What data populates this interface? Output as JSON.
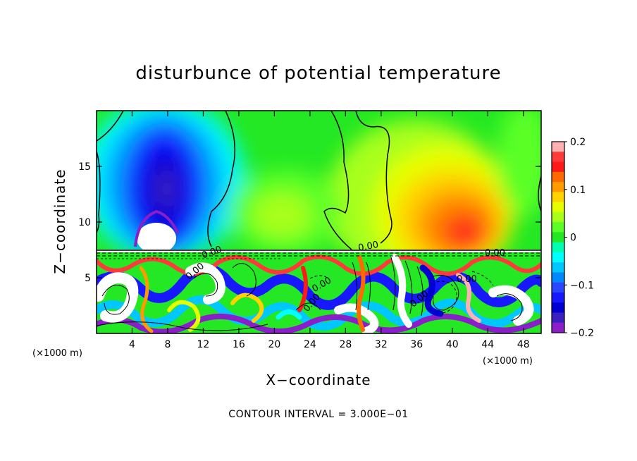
{
  "chart_data": {
    "type": "heatmap",
    "title": "disturbunce of potential temperature",
    "xlabel": "X−coordinate",
    "ylabel": "Z−coordinate",
    "x_unit": "(×1000 m)",
    "y_unit": "(×1000 m)",
    "xlim": [
      0,
      50
    ],
    "ylim": [
      0,
      20
    ],
    "x_ticks": [
      4,
      8,
      12,
      16,
      20,
      24,
      28,
      32,
      36,
      40,
      44,
      48
    ],
    "x_tick_labels": [
      "4",
      "8",
      "12",
      "16",
      "20",
      "24",
      "28",
      "32",
      "36",
      "40",
      "44",
      "48"
    ],
    "y_ticks": [
      5,
      10,
      15
    ],
    "y_tick_labels": [
      "5",
      "10",
      "15"
    ],
    "colorbar": {
      "min": -0.2,
      "max": 0.2,
      "ticks": [
        0.2,
        0.1,
        0,
        -0.1,
        -0.2
      ],
      "tick_labels": [
        "0.2",
        "0.1",
        "0",
        "−0.1",
        "−0.2"
      ],
      "colors": [
        "#ffb0b0",
        "#ff3a3a",
        "#ff1a1a",
        "#ff6a00",
        "#ff9a00",
        "#ffd200",
        "#e6ff00",
        "#a8ff1a",
        "#5aff28",
        "#23e823",
        "#00ffb0",
        "#00ffff",
        "#00c8ff",
        "#0088ff",
        "#2a48ff",
        "#1818ff",
        "#0000d0",
        "#3a20c0",
        "#8a1ec8"
      ]
    },
    "contour_labels": [
      "0.00",
      "0.00",
      "0.00",
      "0.00",
      "0.00",
      "0.00",
      "0.00",
      "0.00"
    ],
    "note": "CONTOUR INTERVAL = 3.000E−01"
  }
}
